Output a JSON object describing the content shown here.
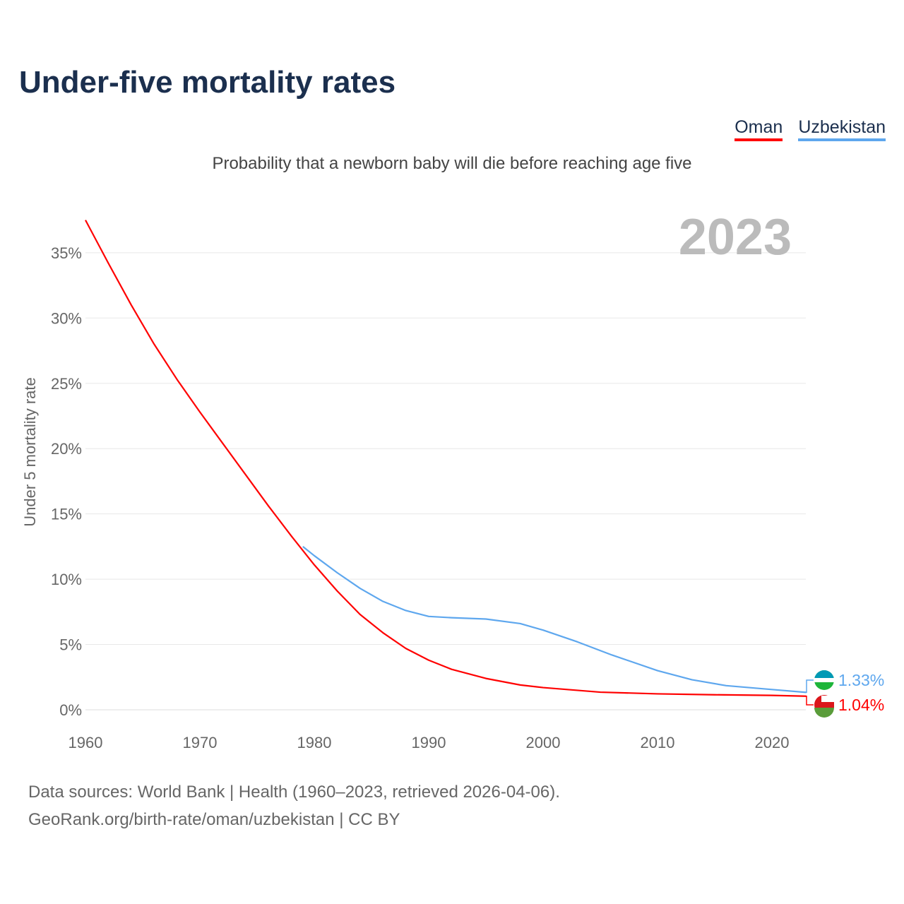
{
  "chart_data": {
    "type": "line",
    "title": "Under-five mortality rates",
    "subtitle": "Probability that a newborn baby will die before reaching age five",
    "ylabel": "Under 5 mortality rate",
    "xlabel": "",
    "year_label": "2023",
    "xlim": [
      1960,
      2023
    ],
    "ylim": [
      0,
      37.5
    ],
    "x_ticks": [
      1960,
      1970,
      1980,
      1990,
      2000,
      2010,
      2020
    ],
    "y_ticks": [
      0,
      5,
      10,
      15,
      20,
      25,
      30,
      35
    ],
    "y_tick_labels": [
      "0%",
      "5%",
      "10%",
      "15%",
      "20%",
      "25%",
      "30%",
      "35%"
    ],
    "grid": true,
    "legend_position": "top-right",
    "series": [
      {
        "name": "Oman",
        "color": "#ff0000",
        "end_label": "1.04%",
        "x": [
          1960,
          1962,
          1964,
          1966,
          1968,
          1970,
          1972,
          1974,
          1976,
          1978,
          1980,
          1982,
          1984,
          1986,
          1988,
          1990,
          1992,
          1995,
          1998,
          2000,
          2005,
          2010,
          2015,
          2020,
          2023
        ],
        "y": [
          37.5,
          34.2,
          31.0,
          28.0,
          25.3,
          22.8,
          20.4,
          18.0,
          15.6,
          13.3,
          11.1,
          9.1,
          7.3,
          5.9,
          4.7,
          3.8,
          3.1,
          2.4,
          1.9,
          1.7,
          1.35,
          1.22,
          1.15,
          1.1,
          1.04
        ]
      },
      {
        "name": "Uzbekistan",
        "color": "#5ea7ee",
        "end_label": "1.33%",
        "x": [
          1979,
          1980,
          1982,
          1984,
          1986,
          1988,
          1990,
          1992,
          1995,
          1998,
          2000,
          2003,
          2006,
          2010,
          2013,
          2016,
          2020,
          2023
        ],
        "y": [
          12.5,
          11.8,
          10.5,
          9.3,
          8.3,
          7.6,
          7.15,
          7.05,
          6.95,
          6.6,
          6.1,
          5.2,
          4.2,
          3.0,
          2.3,
          1.85,
          1.55,
          1.33
        ]
      }
    ]
  },
  "footer": {
    "line1": "Data sources: World Bank | Health (1960–2023, retrieved 2026-04-06).",
    "line2": "GeoRank.org/birth-rate/oman/uzbekistan | CC BY"
  }
}
